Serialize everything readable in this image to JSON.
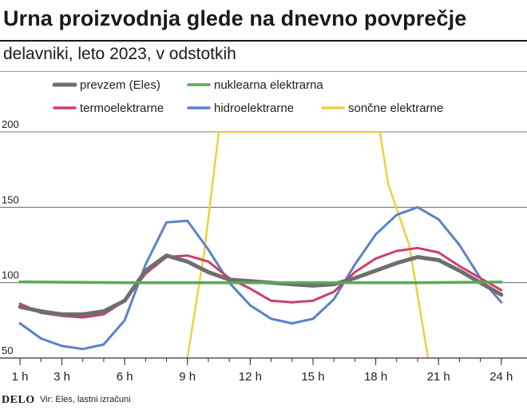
{
  "header": {
    "title": "Urna proizvodnja glede na dnevno povprečje",
    "subtitle": "delavniki, leto 2023, v odstotkih"
  },
  "footer": {
    "logo": "DELO",
    "source": "Vir: Eles, lastni izračuni"
  },
  "chart_data": {
    "type": "line",
    "title": "Urna proizvodnja glede na dnevno povprečje",
    "subtitle": "delavniki, leto 2023, v odstotkih",
    "xlabel": "",
    "ylabel": "",
    "x": [
      1,
      2,
      3,
      4,
      5,
      6,
      7,
      8,
      9,
      10,
      11,
      12,
      13,
      14,
      15,
      16,
      17,
      18,
      19,
      20,
      21,
      22,
      23,
      24
    ],
    "xticks": [
      1,
      3,
      6,
      9,
      12,
      15,
      18,
      21,
      24
    ],
    "xtick_labels": [
      "1 h",
      "3 h",
      "6 h",
      "9 h",
      "12 h",
      "15 h",
      "18 h",
      "21 h",
      "24 h"
    ],
    "yticks": [
      50,
      100,
      150,
      200
    ],
    "ytick_labels": [
      "50",
      "100",
      "150",
      "200"
    ],
    "ylim": [
      50,
      200
    ],
    "xlim": [
      0.5,
      25
    ],
    "grid": true,
    "legend": "top",
    "series": [
      {
        "name": "prevzem (Eles)",
        "color": "#6e6e6e",
        "values": [
          84,
          81,
          79,
          79,
          81,
          88,
          108,
          118,
          114,
          107,
          102,
          101,
          100,
          99,
          98,
          99,
          103,
          108,
          113,
          117,
          115,
          108,
          100,
          92
        ]
      },
      {
        "name": "termoelektrarne",
        "color": "#c9416a",
        "values": [
          86,
          80,
          78,
          77,
          79,
          88,
          106,
          117,
          118,
          114,
          103,
          96,
          88,
          87,
          88,
          94,
          107,
          116,
          121,
          123,
          120,
          111,
          103,
          95
        ]
      },
      {
        "name": "nuklearna elektrarna",
        "color": "#5aa85a",
        "values": [
          100.5,
          100.4,
          100.3,
          100.2,
          100.1,
          100,
          100,
          100,
          100,
          100,
          100,
          100,
          100,
          100,
          100,
          100,
          100,
          100,
          100,
          100,
          100.1,
          100.2,
          100.3,
          100.4
        ]
      },
      {
        "name": "hidroelektrarne",
        "color": "#5a82c8",
        "values": [
          73,
          63,
          58,
          56,
          59,
          75,
          112,
          140,
          141,
          122,
          100,
          85,
          76,
          73,
          76,
          89,
          112,
          132,
          145,
          150,
          142,
          125,
          103,
          87
        ]
      },
      {
        "name": "sončne elektrarne",
        "color": "#f0d040",
        "x": [
          9,
          9.8,
          10.5,
          18.2,
          18.6,
          19.6,
          20.5
        ],
        "values": [
          50,
          120,
          200,
          200,
          165,
          125,
          50
        ]
      }
    ]
  }
}
